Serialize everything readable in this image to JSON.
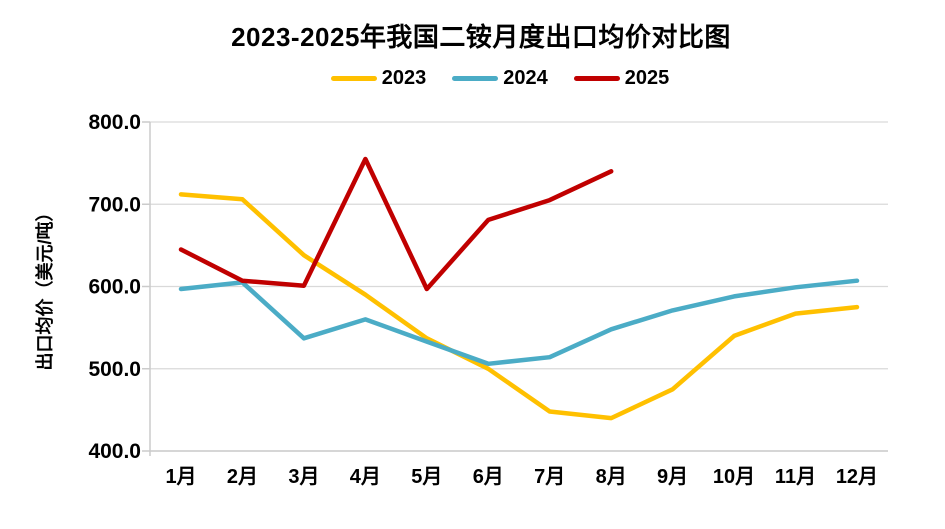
{
  "title": "2023-2025年我国二铵月度出口均价对比图",
  "legend": [
    {
      "label": "2023",
      "color": "#FFC000"
    },
    {
      "label": "2024",
      "color": "#4BACC6"
    },
    {
      "label": "2025",
      "color": "#C00000"
    }
  ],
  "y_axis": {
    "title": "出口均价（美元/吨）",
    "ticks": [
      {
        "label": "800.0",
        "value": 800
      },
      {
        "label": "700.0",
        "value": 700
      },
      {
        "label": "600.0",
        "value": 600
      },
      {
        "label": "500.0",
        "value": 500
      },
      {
        "label": "400.0",
        "value": 400
      }
    ],
    "min": 400,
    "max": 800
  },
  "x_axis": {
    "labels": [
      "1月",
      "2月",
      "3月",
      "4月",
      "5月",
      "6月",
      "7月",
      "8月",
      "9月",
      "10月",
      "11月",
      "12月"
    ]
  },
  "chart_data": {
    "type": "line",
    "title": "2023-2025年我国二铵月度出口均价对比图",
    "xlabel": "",
    "ylabel": "出口均价（美元/吨）",
    "ylim": [
      400,
      800
    ],
    "grid": true,
    "legend_position": "top",
    "categories": [
      "1月",
      "2月",
      "3月",
      "4月",
      "5月",
      "6月",
      "7月",
      "8月",
      "9月",
      "10月",
      "11月",
      "12月"
    ],
    "series": [
      {
        "name": "2023",
        "color": "#FFC000",
        "values": [
          712,
          706,
          638,
          590,
          537,
          500,
          448,
          440,
          475,
          540,
          567,
          575
        ]
      },
      {
        "name": "2024",
        "color": "#4BACC6",
        "values": [
          597,
          605,
          537,
          560,
          533,
          506,
          514,
          548,
          571,
          588,
          599,
          607
        ]
      },
      {
        "name": "2025",
        "color": "#C00000",
        "values": [
          645,
          607,
          601,
          755,
          597,
          681,
          705,
          740,
          null,
          null,
          null,
          null
        ]
      }
    ]
  }
}
